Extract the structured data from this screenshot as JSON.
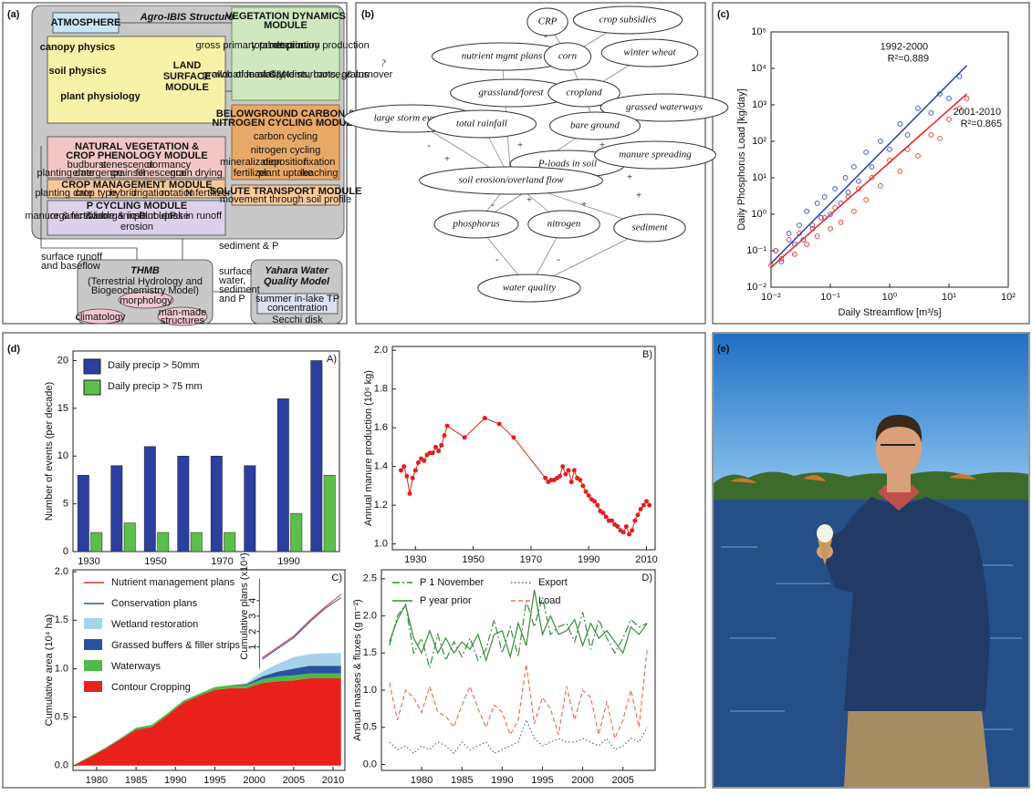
{
  "panel_labels": [
    "(a)",
    "(b)",
    "(c)",
    "(d)",
    "(e)"
  ],
  "diagram": {
    "title": "Agro-IBIS Structure",
    "atmosphere": "ATMOSPHERE",
    "land_surface": [
      "LAND",
      "SURFACE",
      "MODULE"
    ],
    "land_items": [
      "canopy physics",
      "soil physics",
      "plant physiology"
    ],
    "vegetation": [
      "VEGETATION DYNAMICS",
      "MODULE"
    ],
    "veg_items": [
      "gross primary production",
      "total respiration",
      "net primary production",
      "allocation of C&N",
      "growth of leaves, stems, roots, grains",
      "mortality, disturbance, & turnover"
    ],
    "belowground": [
      "BELOWGROUND CARBON &",
      "NITROGEN CYCLING MODULE"
    ],
    "below_items": [
      "carbon cycling",
      "nitrogen cycling",
      "mineralization",
      "deposition",
      "fixation",
      "fertilizer",
      "plant uptake",
      "leaching"
    ],
    "phenology": [
      "NATURAL VEGETATION &",
      "CROP PHENOLOGY MODULE"
    ],
    "phen_items": [
      "budburst",
      "senescence",
      "dormancy",
      "planting date",
      "emergence",
      "grain fill",
      "senescence",
      "grain drying"
    ],
    "crop_mgmt": "CROP MANAGEMENT MODULE",
    "crop_items": [
      "planting date",
      "crop type",
      "hybrid",
      "irrigation",
      "rotation",
      "N fertilizer"
    ],
    "solute": "SOLUTE TRANSPORT MODULE",
    "solute_item": "movement through soil profile",
    "p_cycling": "P CYCLING MODULE",
    "p_items": [
      "manure & fertilizer",
      "organic & inorganic P",
      "soluble & insoluble P",
      "plant uptake",
      "loss in runoff",
      "erosion"
    ],
    "runoff": [
      "surface runoff",
      "and baseflow"
    ],
    "sediment": "sediment & P",
    "surface_water": [
      "surface",
      "water,",
      "sediment",
      "and P"
    ],
    "thmb": [
      "THMB",
      "(Terrestrial Hydrology and",
      "Biogeochemistry Model)"
    ],
    "thmb_items": [
      "morphology",
      "climatology",
      "man-made",
      "structures"
    ],
    "yahara": [
      "Yahara Water",
      "Quality Model"
    ],
    "yahara_items": [
      "summer in-lake TP",
      "concentration",
      "Secchi disk"
    ]
  },
  "sketch": {
    "words": [
      "CRP",
      "crop subsidies",
      "nutrient mgmt plans",
      "corn",
      "winter wheat",
      "grassland/forest",
      "cropland",
      "grassed waterways",
      "large storm events",
      "total rainfall",
      "bare ground",
      "P-loads in soil",
      "manure spreading",
      "soil erosion/overland flow",
      "phosphorus",
      "nitrogen",
      "sediment",
      "water quality"
    ],
    "signs": [
      "?",
      "-",
      "+",
      "+",
      "+",
      "-",
      "+",
      "+",
      "+",
      "-",
      "+",
      "-",
      "-"
    ]
  },
  "chart_data": [
    {
      "type": "scatter",
      "xlabel": "Daily Streamflow [m³/s]",
      "ylabel": "Daily Phosphorus Load [kg/day]",
      "log_x": true,
      "log_y": true,
      "xlim": [
        0.01,
        100
      ],
      "ylim": [
        0.01,
        100000
      ],
      "xticks": [
        {
          "value": 0.01,
          "label": "10⁻²"
        },
        {
          "value": 0.1,
          "label": "10⁻¹"
        },
        {
          "value": 1,
          "label": "10⁰"
        },
        {
          "value": 10,
          "label": "10¹"
        },
        {
          "value": 100,
          "label": "10²"
        }
      ],
      "yticks": [
        {
          "value": 0.01,
          "label": "10⁻²"
        },
        {
          "value": 0.1,
          "label": "10⁻¹"
        },
        {
          "value": 1,
          "label": "10⁰"
        },
        {
          "value": 10,
          "label": "10¹"
        },
        {
          "value": 100,
          "label": "10²"
        },
        {
          "value": 1000,
          "label": "10³"
        },
        {
          "value": 10000,
          "label": "10⁴"
        },
        {
          "value": 100000,
          "label": "10⁵"
        }
      ],
      "series": [
        {
          "name": "1992-2000",
          "annotation": "R²=0.889",
          "color": "#3046c0",
          "x": [
            0.012,
            0.015,
            0.02,
            0.025,
            0.03,
            0.035,
            0.04,
            0.05,
            0.06,
            0.07,
            0.08,
            0.1,
            0.12,
            0.15,
            0.18,
            0.2,
            0.25,
            0.3,
            0.4,
            0.5,
            0.7,
            1,
            1.5,
            2,
            3,
            5,
            7,
            10,
            15
          ],
          "y": [
            0.1,
            0.05,
            0.3,
            0.15,
            0.5,
            0.2,
            1.2,
            0.4,
            2,
            0.8,
            3,
            1,
            5,
            2,
            10,
            4,
            20,
            8,
            50,
            20,
            100,
            60,
            300,
            150,
            800,
            600,
            2000,
            1500,
            6000
          ],
          "fit_x": [
            0.01,
            20
          ],
          "fit_y": [
            0.045,
            12000
          ]
        },
        {
          "name": "2001-2010",
          "annotation": "R²=0.865",
          "color": "#e8302a",
          "x": [
            0.01,
            0.012,
            0.015,
            0.02,
            0.025,
            0.03,
            0.04,
            0.05,
            0.06,
            0.08,
            0.1,
            0.12,
            0.15,
            0.2,
            0.25,
            0.3,
            0.4,
            0.5,
            0.7,
            1,
            1.5,
            2,
            3,
            5,
            7,
            10,
            15,
            20
          ],
          "y": [
            0.04,
            0.1,
            0.06,
            0.2,
            0.08,
            0.3,
            0.15,
            0.5,
            0.25,
            0.8,
            0.4,
            1.5,
            0.6,
            3,
            1.2,
            5,
            2.5,
            10,
            6,
            30,
            15,
            60,
            40,
            150,
            120,
            400,
            800,
            1500
          ],
          "fit_x": [
            0.01,
            20
          ],
          "fit_y": [
            0.035,
            2000
          ]
        }
      ]
    },
    {
      "type": "bar",
      "panel_tag": "A)",
      "ylabel": "Number of events (per decade)",
      "categories": [
        "1930",
        null,
        "1950",
        null,
        "1970",
        null,
        "1990",
        null
      ],
      "series": [
        {
          "name": "Daily precip > 50mm",
          "color": "#2b3f9e",
          "values": [
            8,
            9,
            11,
            10,
            10,
            9,
            16,
            20
          ]
        },
        {
          "name": "Daily precip > 75 mm",
          "color": "#5cbf4a",
          "values": [
            2,
            3,
            2,
            2,
            2,
            0,
            4,
            8
          ]
        }
      ],
      "ylim": [
        0,
        21
      ],
      "yticks": [
        0,
        5,
        10,
        15,
        20
      ],
      "legend": "upper left"
    },
    {
      "type": "line",
      "panel_tag": "B)",
      "ylabel": "Annual manure production (10⁶ kg)",
      "x": [
        1925,
        1926,
        1927,
        1928,
        1929,
        1930,
        1931,
        1932,
        1933,
        1934,
        1935,
        1936,
        1937,
        1938,
        1939,
        1940,
        1941,
        1947,
        1954,
        1959,
        1964,
        1975,
        1976,
        1977,
        1978,
        1979,
        1980,
        1981,
        1982,
        1983,
        1984,
        1985,
        1986,
        1987,
        1988,
        1989,
        1990,
        1991,
        1992,
        1993,
        1994,
        1995,
        1996,
        1997,
        1998,
        1999,
        2000,
        2001,
        2002,
        2003,
        2004,
        2005,
        2006,
        2007,
        2008,
        2009,
        2010,
        2011
      ],
      "series": [
        {
          "color": "#e02020",
          "markers": true,
          "values": [
            1.38,
            1.4,
            1.35,
            1.26,
            1.34,
            1.38,
            1.42,
            1.44,
            1.43,
            1.46,
            1.47,
            1.47,
            1.5,
            1.48,
            1.51,
            1.56,
            1.61,
            1.55,
            1.65,
            1.62,
            1.55,
            1.34,
            1.32,
            1.33,
            1.33,
            1.34,
            1.35,
            1.4,
            1.36,
            1.38,
            1.32,
            1.38,
            1.34,
            1.33,
            1.3,
            1.27,
            1.25,
            1.23,
            1.22,
            1.2,
            1.17,
            1.16,
            1.14,
            1.12,
            1.12,
            1.1,
            1.09,
            1.07,
            1.06,
            1.09,
            1.05,
            1.07,
            1.12,
            1.15,
            1.18,
            1.2,
            1.22,
            1.2
          ]
        }
      ],
      "xlim": [
        1922,
        2013
      ],
      "xticks": [
        1930,
        1950,
        1970,
        1990,
        2010
      ],
      "ylim": [
        0.97,
        2.02
      ],
      "yticks": [
        {
          "value": 1,
          "label": "1.0"
        },
        1.2,
        1.4,
        1.6,
        1.8,
        {
          "value": 2,
          "label": "2.0"
        }
      ]
    },
    {
      "type": "area",
      "panel_tag": "C)",
      "ylabel": "Cumulative area (10⁴ ha)",
      "y2label": "Cumulative plans (x10⁴)",
      "x": [
        1977,
        1979,
        1981,
        1983,
        1985,
        1987,
        1989,
        1991,
        1993,
        1995,
        1997,
        1999,
        2001,
        2003,
        2005,
        2007,
        2009,
        2011
      ],
      "series": [
        {
          "name": "Nutrient management plans",
          "color": "#e03030",
          "axis": "y2",
          "values": [
            null,
            null,
            null,
            null,
            null,
            null,
            null,
            null,
            null,
            null,
            null,
            null,
            0.3,
            1.0,
            1.7,
            2.7,
            3.6,
            4.4
          ]
        },
        {
          "name": "Conservation plans",
          "color": "#3050b0",
          "axis": "y2",
          "values": [
            null,
            null,
            null,
            null,
            null,
            null,
            null,
            null,
            null,
            null,
            null,
            null,
            0.2,
            0.9,
            1.6,
            2.6,
            3.5,
            4.2
          ]
        },
        {
          "name": "Wetland restoration",
          "color": "#a7d3ea",
          "values": [
            0,
            0,
            0,
            0,
            0,
            0,
            0,
            0,
            0,
            0,
            0,
            0.01,
            0.05,
            0.08,
            0.12,
            0.12,
            0.13,
            0.13
          ]
        },
        {
          "name": "Grassed buffers & filler strips",
          "color": "#2952a3",
          "values": [
            0,
            0,
            0,
            0,
            0,
            0,
            0,
            0,
            0,
            0,
            0,
            0.01,
            0.03,
            0.05,
            0.07,
            0.08,
            0.08,
            0.08
          ]
        },
        {
          "name": "Waterways",
          "color": "#50b848",
          "values": [
            0,
            0.01,
            0.01,
            0.01,
            0.02,
            0.02,
            0.02,
            0.02,
            0.02,
            0.03,
            0.03,
            0.03,
            0.04,
            0.05,
            0.05,
            0.05,
            0.05,
            0.05
          ]
        },
        {
          "name": "Contour Cropping",
          "color": "#e8211d",
          "values": [
            0,
            0.08,
            0.17,
            0.27,
            0.37,
            0.4,
            0.52,
            0.65,
            0.72,
            0.78,
            0.8,
            0.8,
            0.85,
            0.87,
            0.88,
            0.9,
            0.9,
            0.9
          ]
        }
      ],
      "xlim": [
        1977,
        2011.5
      ],
      "xticks": [
        1980,
        1985,
        1990,
        1995,
        2000,
        2005,
        2010
      ],
      "ylim": [
        -0.05,
        2.02
      ],
      "yticks": [
        {
          "value": 0,
          "label": "0.0"
        },
        0.5,
        {
          "value": 1,
          "label": "1.0"
        },
        1.5,
        {
          "value": 2,
          "label": "2.0"
        }
      ],
      "y2lim": [
        -7,
        6
      ],
      "y2ticks": [
        1,
        2,
        3,
        4
      ],
      "legend": "upper left"
    },
    {
      "type": "multiline",
      "panel_tag": "D)",
      "ylabel": "Annual masses & fluxes (g m⁻²)",
      "x": [
        1976,
        1977,
        1978,
        1979,
        1980,
        1981,
        1982,
        1983,
        1984,
        1985,
        1986,
        1987,
        1988,
        1989,
        1990,
        1991,
        1992,
        1993,
        1994,
        1995,
        1996,
        1997,
        1998,
        1999,
        2000,
        2001,
        2002,
        2003,
        2004,
        2005,
        2006,
        2007,
        2008
      ],
      "series": [
        {
          "name": "P 1 November",
          "color": "#3a8a3a",
          "dash": "dashdot",
          "values": [
            1.6,
            2.0,
            2.15,
            1.5,
            1.7,
            1.3,
            1.75,
            1.4,
            1.65,
            1.45,
            1.7,
            1.4,
            1.55,
            1.95,
            1.5,
            1.85,
            1.45,
            2.2,
            1.85,
            2.25,
            1.75,
            1.85,
            1.9,
            1.65,
            2.05,
            1.55,
            1.95,
            1.7,
            1.5,
            1.7,
            1.95,
            1.85,
            1.9
          ]
        },
        {
          "name": "Export",
          "color": "#4c5fd0",
          "dash": "dotted",
          "values": [
            0.3,
            0.2,
            0.25,
            0.15,
            0.25,
            0.2,
            0.3,
            0.25,
            0.15,
            0.3,
            0.2,
            0.25,
            0.3,
            0.15,
            0.2,
            0.25,
            0.3,
            0.6,
            0.35,
            0.25,
            0.3,
            0.35,
            0.3,
            0.3,
            0.35,
            0.3,
            0.25,
            0.35,
            0.2,
            0.25,
            0.35,
            0.3,
            0.5
          ]
        },
        {
          "name": "P year prior",
          "color": "#3a8a3a",
          "dash": "solid",
          "values": [
            1.65,
            1.95,
            2.15,
            1.7,
            1.5,
            1.8,
            1.5,
            1.7,
            1.5,
            1.65,
            1.55,
            1.75,
            1.4,
            1.75,
            1.8,
            1.45,
            1.9,
            1.6,
            2.35,
            1.75,
            2.0,
            1.75,
            1.8,
            1.95,
            1.6,
            1.9,
            1.7,
            1.8,
            1.65,
            1.5,
            1.85,
            1.75,
            1.9
          ]
        },
        {
          "name": "Load",
          "color": "#f07060",
          "dash": "dashed",
          "values": [
            1.1,
            0.6,
            1.0,
            0.9,
            0.7,
            1.05,
            0.7,
            0.65,
            0.5,
            0.8,
            1.05,
            0.75,
            0.5,
            0.8,
            0.7,
            0.4,
            0.6,
            1.35,
            0.55,
            0.9,
            0.75,
            0.4,
            1.05,
            0.6,
            1.0,
            0.9,
            0.4,
            0.85,
            0.35,
            0.6,
            1.0,
            0.5,
            1.55
          ]
        }
      ],
      "xlim": [
        1975,
        2009
      ],
      "xticks": [
        1980,
        1985,
        1990,
        1995,
        2000,
        2005
      ],
      "ylim": [
        -0.08,
        2.62
      ],
      "yticks": [
        {
          "value": 0,
          "label": "0.0"
        },
        0.5,
        {
          "value": 1,
          "label": "1.0"
        },
        1.5,
        {
          "value": 2,
          "label": "2.0"
        },
        2.5
      ],
      "legend": "upper left",
      "legend_columns": 2
    }
  ]
}
